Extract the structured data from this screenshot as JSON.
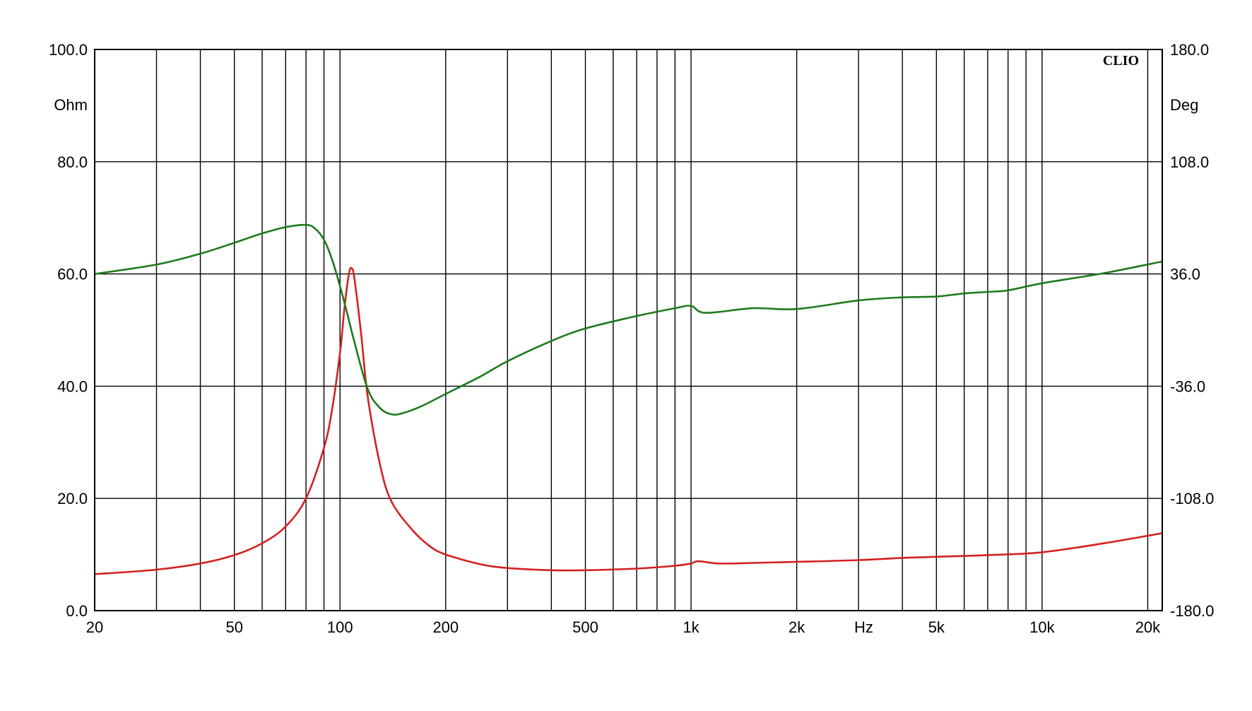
{
  "chart_data": {
    "type": "line",
    "brand": "CLIO",
    "x_scale": "log",
    "xlim": [
      20,
      22000
    ],
    "xlabel": "Hz",
    "x_ticks": [
      {
        "value": 20,
        "label": "20"
      },
      {
        "value": 50,
        "label": "50"
      },
      {
        "value": 100,
        "label": "100"
      },
      {
        "value": 200,
        "label": "200"
      },
      {
        "value": 500,
        "label": "500"
      },
      {
        "value": 1000,
        "label": "1k"
      },
      {
        "value": 2000,
        "label": "2k"
      },
      {
        "value": 5000,
        "label": "5k"
      },
      {
        "value": 10000,
        "label": "10k"
      },
      {
        "value": 20000,
        "label": "20k"
      }
    ],
    "x_unit_label": {
      "after_value": 2000,
      "before_value": 5000,
      "text": "Hz"
    },
    "y_left": {
      "unit": "Ohm",
      "ylim": [
        0,
        100
      ],
      "ticks": [
        {
          "value": 0,
          "label": "0.0"
        },
        {
          "value": 20,
          "label": "20.0"
        },
        {
          "value": 40,
          "label": "40.0"
        },
        {
          "value": 60,
          "label": "60.0"
        },
        {
          "value": 80,
          "label": "80.0"
        },
        {
          "value": 100,
          "label": "100.0"
        }
      ]
    },
    "y_right": {
      "unit": "Deg",
      "ylim": [
        -180,
        180
      ],
      "ticks": [
        {
          "value": -180,
          "label": "-180.0"
        },
        {
          "value": -108,
          "label": "-108.0"
        },
        {
          "value": -36,
          "label": "-36.0"
        },
        {
          "value": 36,
          "label": "36.0"
        },
        {
          "value": 108,
          "label": "108.0"
        },
        {
          "value": 180,
          "label": "180.0"
        }
      ]
    },
    "grid": true,
    "series": [
      {
        "color": "#d42020",
        "axis": "left",
        "points": [
          [
            20,
            6.5
          ],
          [
            30,
            7.3
          ],
          [
            40,
            8.4
          ],
          [
            50,
            9.9
          ],
          [
            60,
            12.0
          ],
          [
            70,
            15.0
          ],
          [
            80,
            20.0
          ],
          [
            90,
            29.0
          ],
          [
            95,
            36.0
          ],
          [
            100,
            46.0
          ],
          [
            103,
            54.0
          ],
          [
            106,
            60.0
          ],
          [
            108,
            61.0
          ],
          [
            110,
            59.0
          ],
          [
            115,
            49.0
          ],
          [
            120,
            38.0
          ],
          [
            130,
            26.0
          ],
          [
            140,
            19.5
          ],
          [
            160,
            14.5
          ],
          [
            180,
            11.5
          ],
          [
            200,
            10.0
          ],
          [
            250,
            8.3
          ],
          [
            300,
            7.6
          ],
          [
            400,
            7.2
          ],
          [
            500,
            7.2
          ],
          [
            700,
            7.5
          ],
          [
            900,
            8.0
          ],
          [
            1000,
            8.4
          ],
          [
            1050,
            8.8
          ],
          [
            1200,
            8.4
          ],
          [
            1500,
            8.5
          ],
          [
            2000,
            8.7
          ],
          [
            3000,
            9.0
          ],
          [
            4000,
            9.4
          ],
          [
            5000,
            9.6
          ],
          [
            7000,
            9.9
          ],
          [
            10000,
            10.4
          ],
          [
            15000,
            12.0
          ],
          [
            22000,
            13.8
          ]
        ]
      },
      {
        "color": "#1e7a1e",
        "axis": "right",
        "points": [
          [
            20,
            36.0
          ],
          [
            30,
            42.0
          ],
          [
            40,
            49.0
          ],
          [
            50,
            56.0
          ],
          [
            60,
            62.0
          ],
          [
            70,
            66.0
          ],
          [
            80,
            67.5
          ],
          [
            85,
            65.0
          ],
          [
            90,
            58.0
          ],
          [
            95,
            45.0
          ],
          [
            100,
            28.0
          ],
          [
            105,
            10.0
          ],
          [
            110,
            -8.0
          ],
          [
            120,
            -38.0
          ],
          [
            130,
            -50.0
          ],
          [
            140,
            -54.0
          ],
          [
            150,
            -53.5
          ],
          [
            170,
            -49.0
          ],
          [
            200,
            -41.0
          ],
          [
            250,
            -30.0
          ],
          [
            300,
            -20.0
          ],
          [
            400,
            -7.0
          ],
          [
            500,
            1.0
          ],
          [
            700,
            9.0
          ],
          [
            900,
            14.0
          ],
          [
            1000,
            15.5
          ],
          [
            1100,
            11.0
          ],
          [
            1500,
            14.0
          ],
          [
            2000,
            13.5
          ],
          [
            3000,
            19.0
          ],
          [
            4000,
            21.0
          ],
          [
            5000,
            21.5
          ],
          [
            6000,
            23.5
          ],
          [
            7000,
            24.5
          ],
          [
            8000,
            25.5
          ],
          [
            10000,
            30.0
          ],
          [
            15000,
            36.5
          ],
          [
            22000,
            44.0
          ]
        ]
      }
    ]
  }
}
